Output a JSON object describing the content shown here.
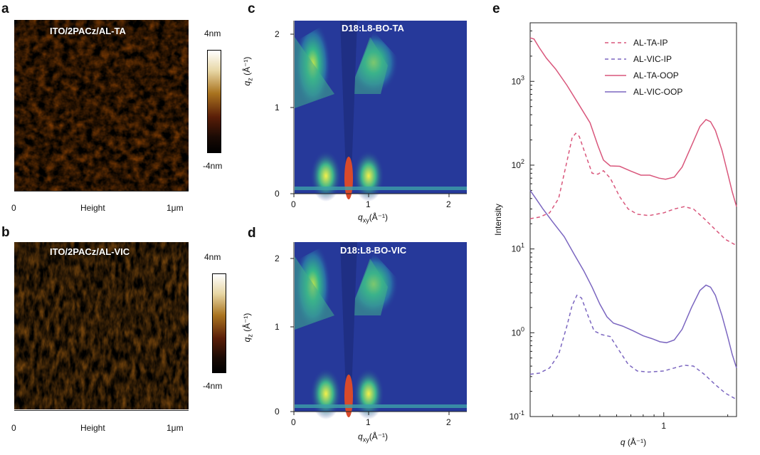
{
  "panels": {
    "a": {
      "letter": "a",
      "image_label": "ITO/2PACz/AL-TA",
      "scale_min": "0",
      "scale_mid": "Height",
      "scale_max": "1μm",
      "colorbar_max": "4nm",
      "colorbar_min": "-4nm"
    },
    "b": {
      "letter": "b",
      "image_label": "ITO/2PACz/AL-VIC",
      "scale_min": "0",
      "scale_mid": "Height",
      "scale_max": "1μm",
      "colorbar_max": "4nm",
      "colorbar_min": "-4nm"
    },
    "c": {
      "letter": "c",
      "image_label": "D18:L8-BO-TA",
      "ylabel_main": "q",
      "ylabel_sub": "z",
      "ylabel_unit": " (Å⁻¹)",
      "xlabel_main": "q",
      "xlabel_sub": "xy",
      "xlabel_unit": "(Å⁻¹)",
      "xticks": [
        "0",
        "1",
        "2"
      ],
      "yticks": [
        "0",
        "1",
        "2"
      ]
    },
    "d": {
      "letter": "d",
      "image_label": "D18:L8-BO-VIC",
      "ylabel_main": "q",
      "ylabel_sub": "z",
      "ylabel_unit": " (Å⁻¹)",
      "xlabel_main": "q",
      "xlabel_sub": "xy",
      "xlabel_unit": "(Å⁻¹)",
      "xticks": [
        "0",
        "1",
        "2"
      ],
      "yticks": [
        "0",
        "1",
        "2"
      ]
    },
    "e": {
      "letter": "e"
    }
  },
  "chart_data": {
    "type": "line",
    "xlabel_main": "q",
    "xlabel_unit": " (Å⁻¹)",
    "ylabel": "Intensity",
    "xscale": "log",
    "yscale": "log",
    "xlim": [
      0.235,
      2.2
    ],
    "ylim": [
      0.1,
      5000
    ],
    "xticks": [
      {
        "value": 1,
        "label": "1"
      }
    ],
    "yticks": [
      {
        "value": 0.1,
        "base": "10",
        "exp": "-1"
      },
      {
        "value": 1,
        "base": "10",
        "exp": "0"
      },
      {
        "value": 10,
        "base": "10",
        "exp": "1"
      },
      {
        "value": 100,
        "base": "10",
        "exp": "2"
      },
      {
        "value": 1000,
        "base": "10",
        "exp": "3"
      }
    ],
    "legend_position": "top-right",
    "series": [
      {
        "name": "AL-TA-IP",
        "color": "#d9577c",
        "dash": true,
        "points": [
          [
            0.235,
            23
          ],
          [
            0.26,
            24
          ],
          [
            0.29,
            27
          ],
          [
            0.32,
            40
          ],
          [
            0.35,
            110
          ],
          [
            0.37,
            210
          ],
          [
            0.385,
            240
          ],
          [
            0.4,
            220
          ],
          [
            0.43,
            130
          ],
          [
            0.46,
            80
          ],
          [
            0.49,
            78
          ],
          [
            0.52,
            86
          ],
          [
            0.56,
            70
          ],
          [
            0.62,
            42
          ],
          [
            0.68,
            30
          ],
          [
            0.75,
            26
          ],
          [
            0.85,
            25
          ],
          [
            1.0,
            27
          ],
          [
            1.12,
            30
          ],
          [
            1.25,
            32
          ],
          [
            1.38,
            30
          ],
          [
            1.55,
            23
          ],
          [
            1.75,
            17
          ],
          [
            1.95,
            13
          ],
          [
            2.2,
            11
          ]
        ]
      },
      {
        "name": "AL-VIC-IP",
        "color": "#7b66c0",
        "dash": true,
        "points": [
          [
            0.235,
            0.32
          ],
          [
            0.26,
            0.33
          ],
          [
            0.29,
            0.38
          ],
          [
            0.32,
            0.55
          ],
          [
            0.35,
            1.2
          ],
          [
            0.37,
            2.1
          ],
          [
            0.39,
            2.8
          ],
          [
            0.41,
            2.6
          ],
          [
            0.44,
            1.6
          ],
          [
            0.47,
            1.05
          ],
          [
            0.51,
            0.95
          ],
          [
            0.56,
            0.9
          ],
          [
            0.62,
            0.6
          ],
          [
            0.68,
            0.42
          ],
          [
            0.75,
            0.35
          ],
          [
            0.85,
            0.34
          ],
          [
            1.0,
            0.35
          ],
          [
            1.12,
            0.38
          ],
          [
            1.25,
            0.41
          ],
          [
            1.38,
            0.4
          ],
          [
            1.55,
            0.32
          ],
          [
            1.75,
            0.24
          ],
          [
            1.95,
            0.19
          ],
          [
            2.2,
            0.16
          ]
        ]
      },
      {
        "name": "AL-TA-OOP",
        "color": "#d9577c",
        "dash": false,
        "points": [
          [
            0.235,
            3300
          ],
          [
            0.245,
            3200
          ],
          [
            0.26,
            2500
          ],
          [
            0.28,
            1900
          ],
          [
            0.31,
            1400
          ],
          [
            0.35,
            900
          ],
          [
            0.4,
            520
          ],
          [
            0.45,
            320
          ],
          [
            0.49,
            170
          ],
          [
            0.52,
            115
          ],
          [
            0.56,
            98
          ],
          [
            0.62,
            97
          ],
          [
            0.7,
            85
          ],
          [
            0.78,
            76
          ],
          [
            0.86,
            76
          ],
          [
            0.95,
            70
          ],
          [
            1.02,
            68
          ],
          [
            1.12,
            72
          ],
          [
            1.22,
            95
          ],
          [
            1.35,
            170
          ],
          [
            1.48,
            290
          ],
          [
            1.58,
            350
          ],
          [
            1.66,
            330
          ],
          [
            1.75,
            260
          ],
          [
            1.88,
            150
          ],
          [
            2.0,
            80
          ],
          [
            2.1,
            48
          ],
          [
            2.2,
            32
          ]
        ]
      },
      {
        "name": "AL-VIC-OOP",
        "color": "#7b66c0",
        "dash": false,
        "points": [
          [
            0.235,
            50
          ],
          [
            0.25,
            40
          ],
          [
            0.27,
            30
          ],
          [
            0.3,
            21
          ],
          [
            0.34,
            14
          ],
          [
            0.38,
            8.5
          ],
          [
            0.42,
            5.5
          ],
          [
            0.46,
            3.5
          ],
          [
            0.5,
            2.2
          ],
          [
            0.54,
            1.55
          ],
          [
            0.58,
            1.3
          ],
          [
            0.64,
            1.2
          ],
          [
            0.72,
            1.05
          ],
          [
            0.8,
            0.92
          ],
          [
            0.88,
            0.85
          ],
          [
            0.96,
            0.78
          ],
          [
            1.03,
            0.76
          ],
          [
            1.12,
            0.82
          ],
          [
            1.22,
            1.1
          ],
          [
            1.35,
            2.0
          ],
          [
            1.48,
            3.2
          ],
          [
            1.58,
            3.7
          ],
          [
            1.66,
            3.5
          ],
          [
            1.75,
            2.8
          ],
          [
            1.88,
            1.6
          ],
          [
            2.0,
            0.9
          ],
          [
            2.1,
            0.55
          ],
          [
            2.2,
            0.38
          ]
        ]
      }
    ]
  }
}
